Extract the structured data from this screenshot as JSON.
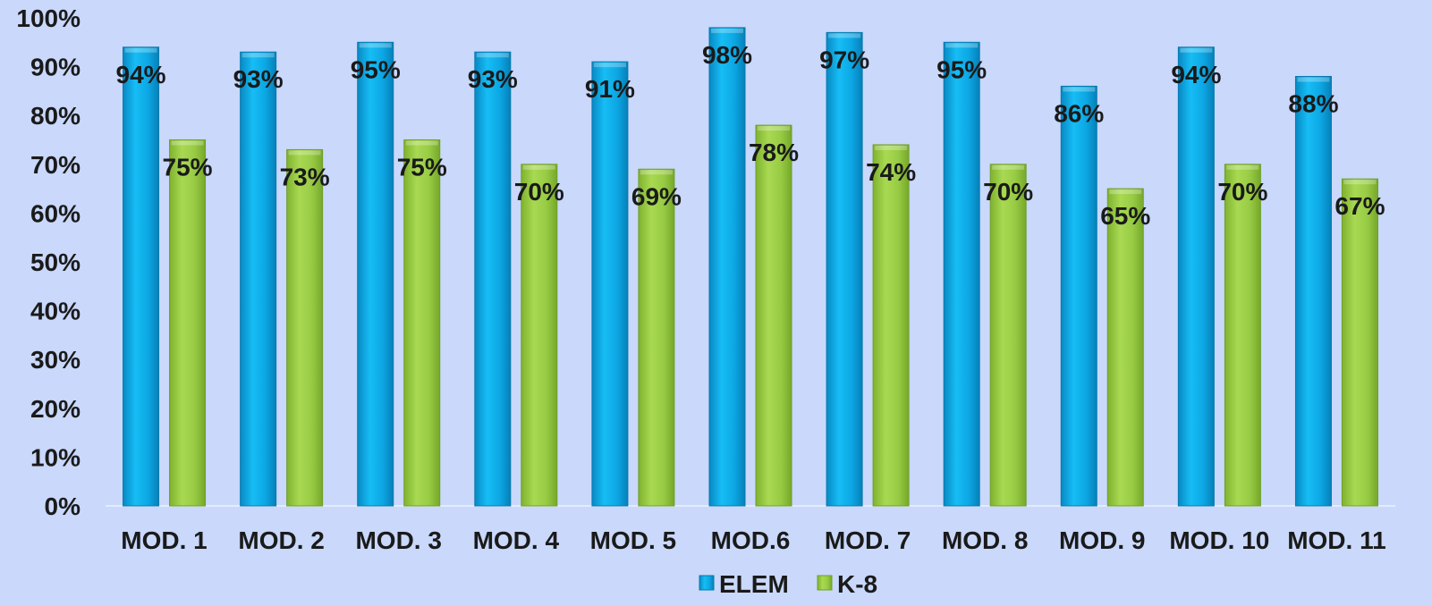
{
  "chart_data": {
    "type": "bar",
    "categories": [
      "MOD. 1",
      "MOD. 2",
      "MOD. 3",
      "MOD. 4",
      "MOD. 5",
      "MOD.6",
      "MOD. 7",
      "MOD. 8",
      "MOD. 9",
      "MOD. 10",
      "MOD. 11"
    ],
    "series": [
      {
        "name": "ELEM",
        "values": [
          94,
          93,
          95,
          93,
          91,
          98,
          97,
          95,
          86,
          94,
          88
        ],
        "labels": [
          "94%",
          "93%",
          "95%",
          "93%",
          "91%",
          "98%",
          "97%",
          "95%",
          "86%",
          "94%",
          "88%"
        ],
        "color": "#0aa9e8"
      },
      {
        "name": "K-8",
        "values": [
          75,
          73,
          75,
          70,
          69,
          78,
          74,
          70,
          65,
          70,
          67
        ],
        "labels": [
          "75%",
          "73%",
          "75%",
          "70%",
          "69%",
          "78%",
          "74%",
          "70%",
          "65%",
          "70%",
          "67%"
        ],
        "color": "#9bce45"
      }
    ],
    "ylim": [
      0,
      100
    ],
    "yticks": [
      0,
      10,
      20,
      30,
      40,
      50,
      60,
      70,
      80,
      90,
      100
    ],
    "ytick_labels": [
      "0%",
      "10%",
      "20%",
      "30%",
      "40%",
      "50%",
      "60%",
      "70%",
      "80%",
      "90%",
      "100%"
    ],
    "grid": false,
    "legend": "bottom",
    "background": "#c9d8fb"
  }
}
